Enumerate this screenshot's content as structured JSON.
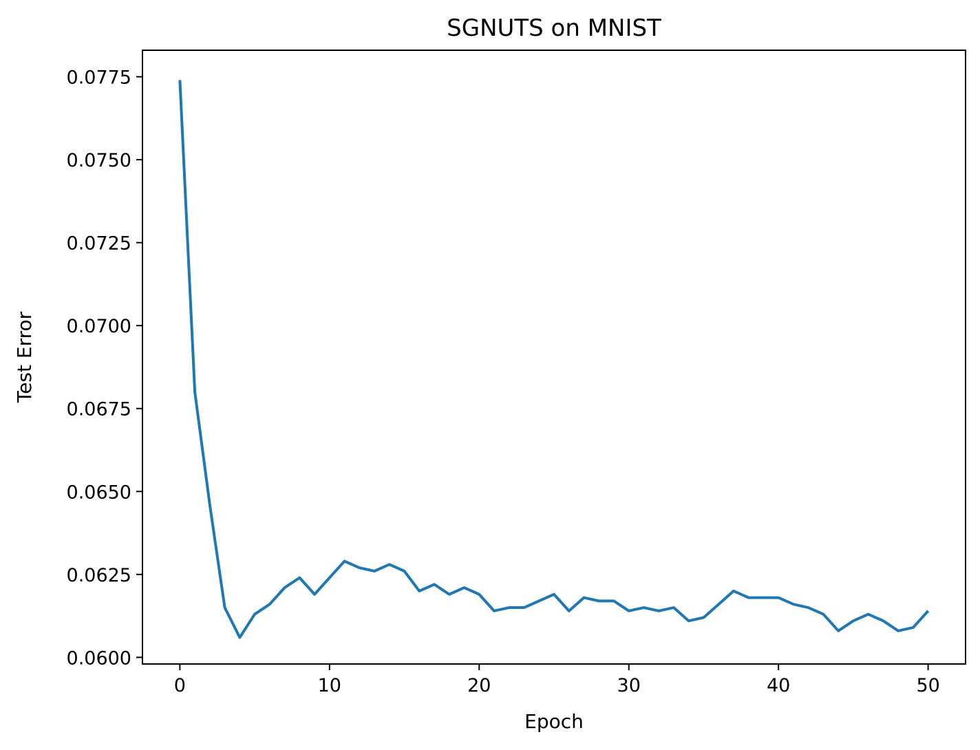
{
  "chart_data": {
    "type": "line",
    "title": "SGNUTS on MNIST",
    "xlabel": "Epoch",
    "ylabel": "Test Error",
    "xlim": [
      -2.5,
      52.5
    ],
    "ylim": [
      0.0598,
      0.0783
    ],
    "xticks": [
      0,
      10,
      20,
      30,
      40,
      50
    ],
    "xtick_labels": [
      "0",
      "10",
      "20",
      "30",
      "40",
      "50"
    ],
    "yticks": [
      0.06,
      0.0625,
      0.065,
      0.0675,
      0.07,
      0.0725,
      0.075,
      0.0775
    ],
    "ytick_labels": [
      "0.0600",
      "0.0625",
      "0.0650",
      "0.0675",
      "0.0700",
      "0.0725",
      "0.0750",
      "0.0775"
    ],
    "grid": false,
    "series": [
      {
        "color": "#1f77b4",
        "x": [
          0,
          1,
          2,
          3,
          4,
          5,
          6,
          7,
          8,
          9,
          10,
          11,
          12,
          13,
          14,
          15,
          16,
          17,
          18,
          19,
          20,
          21,
          22,
          23,
          24,
          25,
          26,
          27,
          28,
          29,
          30,
          31,
          32,
          33,
          34,
          35,
          36,
          37,
          38,
          39,
          40,
          41,
          42,
          43,
          44,
          45,
          46,
          47,
          48,
          49,
          50
        ],
        "values": [
          0.0774,
          0.068,
          0.0646,
          0.0615,
          0.0606,
          0.0613,
          0.0616,
          0.0621,
          0.0624,
          0.0619,
          0.0624,
          0.0629,
          0.0627,
          0.0626,
          0.0628,
          0.0626,
          0.062,
          0.0622,
          0.0619,
          0.0621,
          0.0619,
          0.0614,
          0.0615,
          0.0615,
          0.0617,
          0.0619,
          0.0614,
          0.0618,
          0.0617,
          0.0617,
          0.0614,
          0.0615,
          0.0614,
          0.0615,
          0.0611,
          0.0612,
          0.0616,
          0.062,
          0.0618,
          0.0618,
          0.0618,
          0.0616,
          0.0615,
          0.0613,
          0.0608,
          0.0611,
          0.0613,
          0.0611,
          0.0608,
          0.0609,
          0.0614
        ]
      }
    ]
  }
}
